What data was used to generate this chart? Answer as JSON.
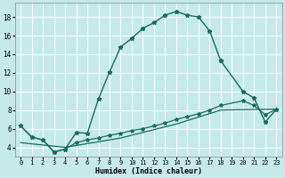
{
  "title": "",
  "xlabel": "Humidex (Indice chaleur)",
  "bg_color": "#c6eaea",
  "grid_color": "#ffffff",
  "line_color": "#1a6b5a",
  "xlim": [
    -0.5,
    23.5
  ],
  "ylim": [
    3.0,
    19.5
  ],
  "xticks": [
    0,
    1,
    2,
    3,
    4,
    5,
    6,
    7,
    8,
    9,
    10,
    11,
    12,
    13,
    14,
    15,
    16,
    17,
    18,
    19,
    20,
    21,
    22,
    23
  ],
  "yticks": [
    4,
    6,
    8,
    10,
    12,
    14,
    16,
    18
  ],
  "curve1_x": [
    0,
    1,
    2,
    3,
    4,
    5,
    6,
    7,
    8,
    9,
    10,
    11,
    12,
    13,
    14,
    15,
    16,
    17,
    18
  ],
  "curve1_y": [
    6.3,
    5.1,
    4.8,
    3.5,
    3.8,
    5.6,
    5.5,
    9.2,
    12.1,
    14.8,
    15.7,
    16.8,
    17.4,
    18.2,
    18.6,
    18.2,
    18.0,
    16.5,
    13.3
  ],
  "curve2_x": [
    18,
    20,
    21,
    22,
    23
  ],
  "curve2_y": [
    13.3,
    10.0,
    9.3,
    6.7,
    8.1
  ],
  "curve3_x": [
    0,
    1,
    2,
    3,
    4,
    5,
    6,
    7,
    8,
    9,
    10,
    11,
    12,
    13,
    14,
    15,
    16,
    17,
    18,
    20,
    21,
    22,
    23
  ],
  "curve3_y": [
    6.3,
    5.1,
    4.8,
    3.5,
    3.8,
    4.5,
    4.8,
    5.0,
    5.3,
    5.5,
    5.8,
    6.0,
    6.3,
    6.6,
    7.0,
    7.3,
    7.6,
    8.0,
    8.5,
    9.0,
    8.5,
    7.5,
    8.1
  ],
  "curve4_x": [
    0,
    4,
    9,
    14,
    18,
    23
  ],
  "curve4_y": [
    4.5,
    4.0,
    5.0,
    6.5,
    8.0,
    8.1
  ]
}
